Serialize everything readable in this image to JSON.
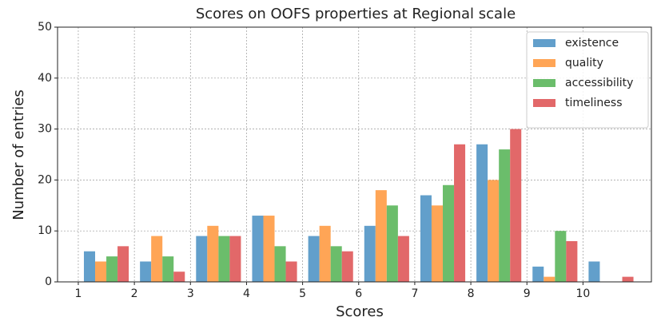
{
  "chart_data": {
    "type": "bar",
    "title": "Scores on OOFS properties at Regional scale",
    "xlabel": "Scores",
    "ylabel": "Number of entries",
    "x": [
      1,
      2,
      3,
      4,
      5,
      6,
      7,
      8,
      9,
      10
    ],
    "series": [
      {
        "name": "existence",
        "color": "#629fcb",
        "values": [
          6,
          4,
          9,
          13,
          9,
          11,
          17,
          27,
          3,
          4
        ]
      },
      {
        "name": "quality",
        "color": "#ffa556",
        "values": [
          4,
          9,
          11,
          13,
          11,
          18,
          15,
          20,
          1,
          0
        ]
      },
      {
        "name": "accessibility",
        "color": "#6bbd6b",
        "values": [
          5,
          5,
          9,
          7,
          7,
          15,
          19,
          26,
          10,
          0
        ]
      },
      {
        "name": "timeliness",
        "color": "#e26869",
        "values": [
          7,
          2,
          9,
          4,
          6,
          9,
          27,
          30,
          8,
          1
        ]
      }
    ],
    "xlim": [
      0.63,
      11.22
    ],
    "xticks": [
      1,
      2,
      3,
      4,
      5,
      6,
      7,
      8,
      9,
      10
    ],
    "ylim": [
      0,
      50
    ],
    "yticks": [
      0,
      10,
      20,
      30,
      40,
      50
    ],
    "grid": true,
    "legend": "upper right"
  }
}
